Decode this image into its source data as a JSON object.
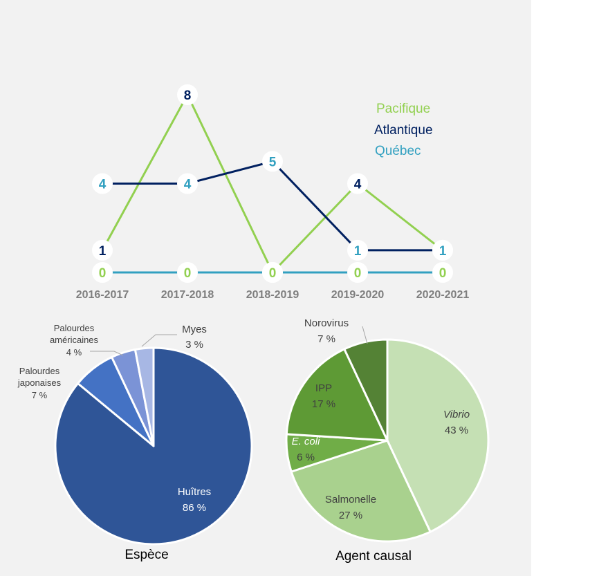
{
  "chart_data": [
    {
      "type": "line",
      "categories": [
        "2016-2017",
        "2017-2018",
        "2018-2019",
        "2019-2020",
        "2020-2021"
      ],
      "series": [
        {
          "name": "Pacifique",
          "color": "#92d050",
          "values": [
            1,
            8,
            0,
            4,
            1
          ]
        },
        {
          "name": "Atlantique",
          "color": "#002060",
          "values": [
            4,
            4,
            5,
            1,
            1
          ]
        },
        {
          "name": "Québec",
          "color": "#31a0c0",
          "values": [
            0,
            0,
            0,
            0,
            0
          ]
        }
      ],
      "point_labels": [
        {
          "text": "1",
          "color": "#002060"
        },
        {
          "text": "8",
          "color": "#002060"
        },
        {
          "text": "0",
          "color": "#002060"
        },
        {
          "text": "4",
          "color": "#002060"
        },
        {
          "text": "1",
          "color": "#31a0c0"
        },
        {
          "text": "4",
          "color": "#31a0c0"
        },
        {
          "text": "4",
          "color": "#31a0c0"
        },
        {
          "text": "5",
          "color": "#31a0c0"
        },
        {
          "text": "1",
          "color": "#31a0c0"
        },
        {
          "text": "1",
          "color": "#31a0c0"
        },
        {
          "text": "0",
          "color": "#92d050"
        },
        {
          "text": "0",
          "color": "#92d050"
        },
        {
          "text": "0",
          "color": "#92d050"
        },
        {
          "text": "0",
          "color": "#92d050"
        },
        {
          "text": "0",
          "color": "#92d050"
        }
      ],
      "ylim": [
        0,
        8
      ],
      "grid": false,
      "legend": "right",
      "title": "",
      "xlabel": "",
      "ylabel": ""
    },
    {
      "type": "pie",
      "title": "Espèce",
      "slices": [
        {
          "label": "Huîtres",
          "value": 86,
          "pct": "86 %",
          "color": "#2f5597"
        },
        {
          "label": "Palourdes japonaises",
          "value": 7,
          "pct": "7 %",
          "color": "#4472c4"
        },
        {
          "label": "Palourdes américaines",
          "value": 4,
          "pct": "4 %",
          "color": "#7b93d6"
        },
        {
          "label": "Myes",
          "value": 3,
          "pct": "3 %",
          "color": "#a7b7e4"
        }
      ],
      "label_lines": [
        "Palourdes",
        "japonaises",
        "Palourdes",
        "américaines"
      ]
    },
    {
      "type": "pie",
      "title": "Agent causal",
      "slices": [
        {
          "label": "Vibrio",
          "value": 43,
          "pct": "43 %",
          "color": "#c5e0b4"
        },
        {
          "label": "Salmonelle",
          "value": 27,
          "pct": "27 %",
          "color": "#a9d18e"
        },
        {
          "label": "E. coli",
          "value": 6,
          "pct": "6 %",
          "color": "#70ad47"
        },
        {
          "label": "IPP",
          "value": 17,
          "pct": "17 %",
          "color": "#5e9a35"
        },
        {
          "label": "Norovirus",
          "value": 7,
          "pct": "7 %",
          "color": "#548235"
        }
      ]
    }
  ]
}
